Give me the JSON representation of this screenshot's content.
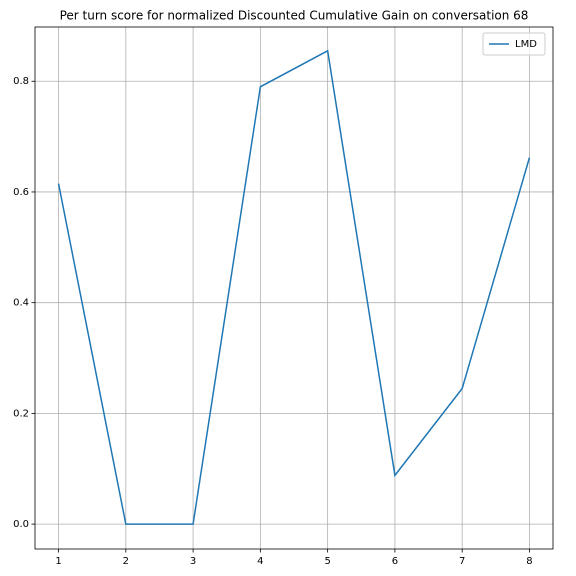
{
  "chart_data": {
    "type": "line",
    "title": "Per turn score for normalized Discounted Cumulative Gain on conversation 68",
    "x": [
      1,
      2,
      3,
      4,
      5,
      6,
      7,
      8
    ],
    "series": [
      {
        "name": "LMD",
        "color": "#1f77b4",
        "values": [
          0.615,
          0.0,
          0.0,
          0.79,
          0.855,
          0.088,
          0.245,
          0.662
        ]
      }
    ],
    "xlim": [
      0.65,
      8.35
    ],
    "xticks": [
      1,
      2,
      3,
      4,
      5,
      6,
      7,
      8
    ],
    "ylim": [
      -0.045,
      0.898
    ],
    "yticks": [
      {
        "value": 0,
        "label": "0.0"
      },
      0.2,
      0.4,
      0.6,
      0.8
    ],
    "grid": true,
    "legend": "upper right"
  }
}
